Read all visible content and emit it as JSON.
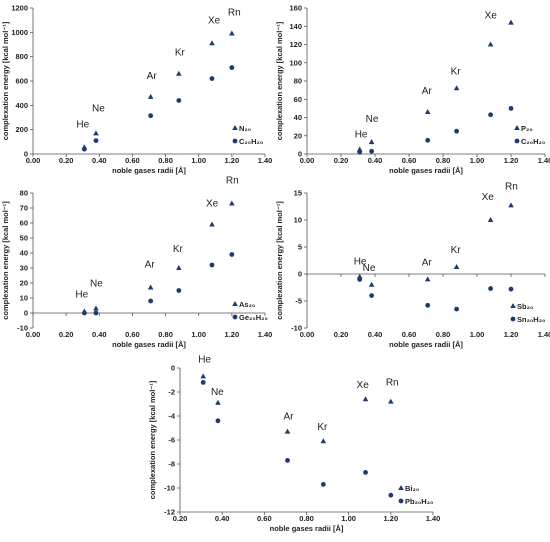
{
  "figure": {
    "marker_color": "#1f3b6e"
  },
  "chart_data": [
    {
      "type": "scatter",
      "title": "",
      "xlabel": "noble gases radii [Å]",
      "ylabel": "complexation energy [kcal mol⁻¹]",
      "xlim": [
        0,
        1.4
      ],
      "ylim": [
        0,
        1200
      ],
      "xticks": [
        "0.00",
        "0.20",
        "0.40",
        "0.60",
        "0.80",
        "1.00",
        "1.20",
        "1.40"
      ],
      "yticks": [
        "0",
        "200",
        "400",
        "600",
        "800",
        "1000",
        "1200"
      ],
      "x": [
        0.31,
        0.38,
        0.71,
        0.88,
        1.08,
        1.2
      ],
      "labels": [
        "He",
        "Ne",
        "Ar",
        "Kr",
        "Xe",
        "Rn"
      ],
      "series": [
        {
          "name": "N₂₀",
          "marker": "triangle",
          "values": [
            55,
            170,
            470,
            660,
            910,
            990
          ]
        },
        {
          "name": "C₂₀H₂₀",
          "marker": "circle",
          "values": [
            40,
            110,
            315,
            440,
            620,
            710
          ]
        }
      ]
    },
    {
      "type": "scatter",
      "title": "",
      "xlabel": "noble gases radii [Å]",
      "ylabel": "complexation energy [kcal mol⁻¹]",
      "xlim": [
        0,
        1.4
      ],
      "ylim": [
        0,
        160
      ],
      "xticks": [
        "0.00",
        "0.20",
        "0.40",
        "0.60",
        "0.80",
        "1.00",
        "1.20",
        "1.40"
      ],
      "yticks": [
        "0",
        "20",
        "40",
        "60",
        "80",
        "100",
        "120",
        "140",
        "160"
      ],
      "x": [
        0.31,
        0.38,
        0.71,
        0.88,
        1.08,
        1.2
      ],
      "labels": [
        "He",
        "Ne",
        "Ar",
        "Kr",
        "Xe",
        "Rn"
      ],
      "series": [
        {
          "name": "P₂₀",
          "marker": "triangle",
          "values": [
            5,
            13,
            46,
            72,
            120,
            144
          ]
        },
        {
          "name": "C₂₀H₂₀",
          "marker": "circle",
          "values": [
            2,
            3,
            15,
            25,
            43,
            50
          ]
        }
      ]
    },
    {
      "type": "scatter",
      "title": "",
      "xlabel": "noble gases radii [Å]",
      "ylabel": "complexation energy [kcal mol⁻¹]",
      "xlim": [
        0,
        1.4
      ],
      "ylim": [
        -10,
        80
      ],
      "xticks": [
        "0.00",
        "0.20",
        "0.40",
        "0.60",
        "0.80",
        "1.00",
        "1.20",
        "1.40"
      ],
      "yticks": [
        "-10",
        "0",
        "10",
        "20",
        "30",
        "40",
        "50",
        "60",
        "70",
        "80"
      ],
      "x": [
        0.31,
        0.38,
        0.71,
        0.88,
        1.08,
        1.2
      ],
      "labels": [
        "He",
        "Ne",
        "Ar",
        "Kr",
        "Xe",
        "Rn"
      ],
      "series": [
        {
          "name": "As₂₀",
          "marker": "triangle",
          "values": [
            1,
            3,
            17,
            30,
            59,
            73
          ]
        },
        {
          "name": "Ge₂₀H₂₀",
          "marker": "circle",
          "values": [
            0,
            0,
            8,
            15,
            32,
            39
          ]
        }
      ]
    },
    {
      "type": "scatter",
      "title": "",
      "xlabel": "noble gases radii [Å]",
      "ylabel": "complexation energy [kcal mol⁻¹]",
      "xlim": [
        0,
        1.4
      ],
      "ylim": [
        -10,
        15
      ],
      "xticks": [
        "0.00",
        "0.20",
        "0.40",
        "0.60",
        "0.80",
        "1.00",
        "1.20",
        "1.40"
      ],
      "yticks": [
        "-10",
        "-5",
        "0",
        "5",
        "10",
        "15"
      ],
      "x": [
        0.31,
        0.38,
        0.71,
        0.88,
        1.08,
        1.2
      ],
      "labels": [
        "He",
        "Ne",
        "Ar",
        "Kr",
        "Xe",
        "Rn"
      ],
      "series": [
        {
          "name": "Sb₂₀",
          "marker": "triangle",
          "values": [
            -0.5,
            -2,
            -1,
            1.3,
            10,
            12.7
          ]
        },
        {
          "name": "Sn₂₀H₂₀",
          "marker": "circle",
          "values": [
            -1,
            -4,
            -5.8,
            -6.5,
            -2.7,
            -2.8
          ]
        }
      ]
    },
    {
      "type": "scatter",
      "title": "",
      "xlabel": "noble gases radii [Å]",
      "ylabel": "complexation energy [kcal mol⁻¹]",
      "xlim": [
        0.2,
        1.4
      ],
      "ylim": [
        -12,
        0
      ],
      "xticks": [
        "0.20",
        "0.40",
        "0.60",
        "0.80",
        "1.00",
        "1.20",
        "1.40"
      ],
      "yticks": [
        "-12",
        "-10",
        "-8",
        "-6",
        "-4",
        "-2",
        "0"
      ],
      "x": [
        0.31,
        0.38,
        0.71,
        0.88,
        1.08,
        1.2
      ],
      "labels": [
        "He",
        "Ne",
        "Ar",
        "Kr",
        "Xe",
        "Rn"
      ],
      "series": [
        {
          "name": "Bi₂₀",
          "marker": "triangle",
          "values": [
            -0.7,
            -2.9,
            -5.3,
            -6.1,
            -2.6,
            -2.8
          ]
        },
        {
          "name": "Pb₂₀H₂₀",
          "marker": "circle",
          "values": [
            -1.2,
            -4.4,
            -7.7,
            -9.7,
            -8.7,
            -10.6
          ]
        }
      ]
    }
  ]
}
